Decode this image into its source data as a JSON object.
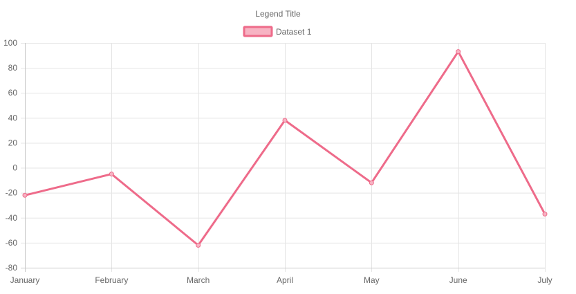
{
  "chart_data": {
    "type": "line",
    "legend": {
      "title": "Legend Title",
      "position": "top"
    },
    "categories": [
      "January",
      "February",
      "March",
      "April",
      "May",
      "June",
      "July"
    ],
    "series": [
      {
        "name": "Dataset 1",
        "values": [
          -22,
          -5,
          -62,
          38,
          -12,
          93,
          -37
        ],
        "color": "#ee6b8a",
        "fill_color": "#f7b3c3"
      }
    ],
    "ylim": [
      -80,
      100
    ],
    "y_ticks": [
      "100",
      "80",
      "60",
      "40",
      "20",
      "0",
      "-20",
      "-40",
      "-60",
      "-80"
    ],
    "grid": true
  }
}
